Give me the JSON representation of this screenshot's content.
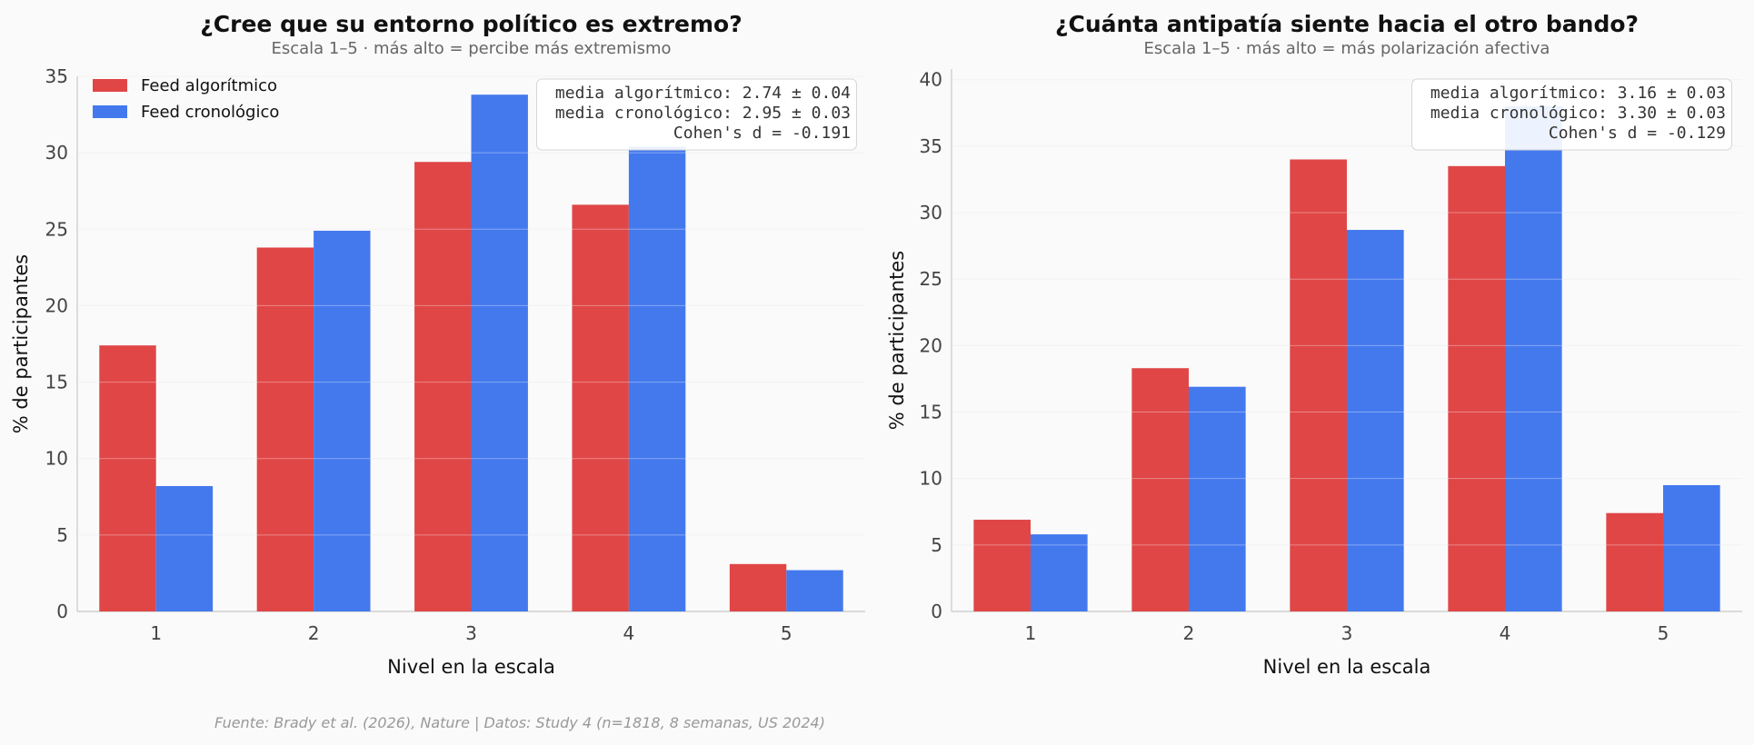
{
  "source": "Fuente: Brady et al. (2026), Nature | Datos: Study 4 (n=1818, 8 semanas, US 2024)",
  "colors": {
    "algoritmico": "#e04646",
    "cronologico": "#4479ee"
  },
  "chart_data": [
    {
      "type": "bar",
      "title": "¿Cree que su entorno político es extremo?",
      "subtitle": "Escala 1–5 · más alto = percibe más extremismo",
      "xlabel": "Nivel en la escala",
      "ylabel": "% de participantes",
      "categories": [
        "1",
        "2",
        "3",
        "4",
        "5"
      ],
      "ylim": [
        0,
        35
      ],
      "yticks": [
        0,
        5,
        10,
        15,
        20,
        25,
        30,
        35
      ],
      "grid": true,
      "legend": "top-left",
      "series": [
        {
          "name": "Feed algorítmico",
          "values": [
            17.4,
            23.8,
            29.4,
            26.6,
            3.1
          ]
        },
        {
          "name": "Feed cronológico",
          "values": [
            8.2,
            24.9,
            33.8,
            30.4,
            2.7
          ]
        }
      ],
      "stats": [
        "media algorítmico: 2.74 ± 0.04",
        "media cronológico: 2.95 ± 0.03",
        "Cohen's d = -0.191"
      ]
    },
    {
      "type": "bar",
      "title": "¿Cuánta antipatía siente hacia el otro bando?",
      "subtitle": "Escala 1–5 · más alto = más polarización afectiva",
      "xlabel": "Nivel en la escala",
      "ylabel": "% de participantes",
      "categories": [
        "1",
        "2",
        "3",
        "4",
        "5"
      ],
      "ylim": [
        0,
        40.8
      ],
      "yticks": [
        0,
        5,
        10,
        15,
        20,
        25,
        30,
        35,
        40
      ],
      "grid": true,
      "legend": "",
      "series": [
        {
          "values": [
            6.9,
            18.3,
            34.0,
            33.5,
            7.4
          ]
        },
        {
          "values": [
            5.8,
            16.9,
            28.7,
            38.0,
            9.5
          ]
        }
      ],
      "stats": [
        "media algorítmico: 3.16 ± 0.03",
        "media cronológico: 3.30 ± 0.03",
        "Cohen's d = -0.129"
      ]
    }
  ]
}
